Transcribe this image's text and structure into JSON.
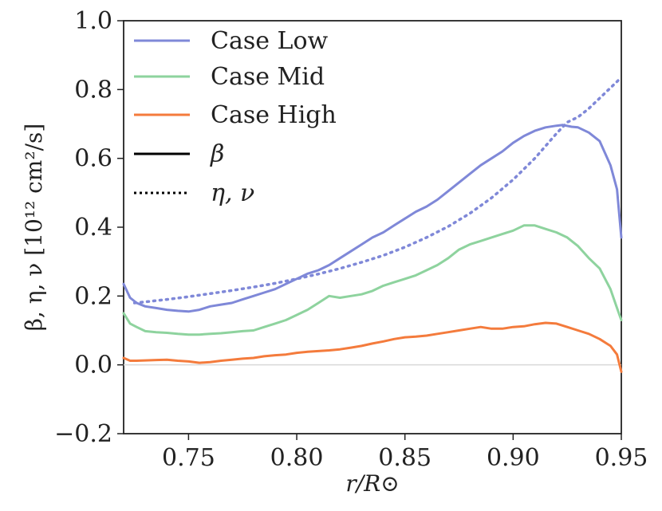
{
  "chart_data": {
    "type": "line",
    "title": "",
    "xlabel": "r/R⊙",
    "ylabel": "β, η, ν [10¹² cm²/s]",
    "xlim": [
      0.72,
      0.95
    ],
    "ylim": [
      -0.2,
      1.0
    ],
    "xticks": [
      "0.75",
      "0.80",
      "0.85",
      "0.90",
      "0.95"
    ],
    "xtick_values": [
      0.75,
      0.8,
      0.85,
      0.9,
      0.95
    ],
    "yticks": [
      "−0.2",
      "0.0",
      "0.2",
      "0.4",
      "0.6",
      "0.8",
      "1.0"
    ],
    "ytick_values": [
      -0.2,
      0.0,
      0.2,
      0.4,
      0.6,
      0.8,
      1.0
    ],
    "zero_line": true,
    "legend_position": "top-left",
    "legend": [
      {
        "label": "Case Low",
        "color": "#7f88d8",
        "style": "solid"
      },
      {
        "label": "Case Mid",
        "color": "#8ed39e",
        "style": "solid"
      },
      {
        "label": "Case High",
        "color": "#f47b3c",
        "style": "solid"
      },
      {
        "label": "β",
        "color": "#000000",
        "style": "solid"
      },
      {
        "label": "η, ν",
        "color": "#000000",
        "style": "dotted"
      }
    ],
    "series": [
      {
        "name": "Case Low β",
        "color": "#7f88d8",
        "style": "solid",
        "x": [
          0.72,
          0.723,
          0.726,
          0.73,
          0.735,
          0.74,
          0.745,
          0.75,
          0.755,
          0.76,
          0.765,
          0.77,
          0.775,
          0.78,
          0.785,
          0.79,
          0.795,
          0.8,
          0.805,
          0.81,
          0.815,
          0.82,
          0.825,
          0.83,
          0.835,
          0.84,
          0.845,
          0.85,
          0.855,
          0.86,
          0.865,
          0.87,
          0.875,
          0.88,
          0.885,
          0.89,
          0.895,
          0.9,
          0.905,
          0.91,
          0.915,
          0.92,
          0.923,
          0.927,
          0.93,
          0.935,
          0.94,
          0.945,
          0.948,
          0.95
        ],
        "y": [
          0.235,
          0.195,
          0.18,
          0.17,
          0.165,
          0.16,
          0.157,
          0.155,
          0.16,
          0.17,
          0.175,
          0.18,
          0.19,
          0.2,
          0.21,
          0.22,
          0.235,
          0.25,
          0.265,
          0.275,
          0.29,
          0.31,
          0.33,
          0.35,
          0.37,
          0.385,
          0.405,
          0.425,
          0.445,
          0.46,
          0.48,
          0.505,
          0.53,
          0.555,
          0.58,
          0.6,
          0.62,
          0.645,
          0.665,
          0.68,
          0.69,
          0.695,
          0.697,
          0.692,
          0.69,
          0.675,
          0.65,
          0.58,
          0.51,
          0.37
        ]
      },
      {
        "name": "Case Mid β",
        "color": "#8ed39e",
        "style": "solid",
        "x": [
          0.72,
          0.723,
          0.726,
          0.73,
          0.735,
          0.74,
          0.745,
          0.75,
          0.755,
          0.76,
          0.765,
          0.77,
          0.775,
          0.78,
          0.785,
          0.79,
          0.795,
          0.8,
          0.805,
          0.81,
          0.815,
          0.82,
          0.825,
          0.83,
          0.835,
          0.84,
          0.845,
          0.85,
          0.855,
          0.86,
          0.865,
          0.87,
          0.875,
          0.88,
          0.885,
          0.89,
          0.895,
          0.9,
          0.905,
          0.91,
          0.915,
          0.92,
          0.925,
          0.93,
          0.935,
          0.94,
          0.945,
          0.948,
          0.95
        ],
        "y": [
          0.15,
          0.12,
          0.11,
          0.098,
          0.095,
          0.093,
          0.09,
          0.088,
          0.088,
          0.09,
          0.092,
          0.095,
          0.098,
          0.1,
          0.11,
          0.12,
          0.13,
          0.145,
          0.16,
          0.18,
          0.2,
          0.195,
          0.2,
          0.205,
          0.215,
          0.23,
          0.24,
          0.25,
          0.26,
          0.275,
          0.29,
          0.31,
          0.335,
          0.35,
          0.36,
          0.37,
          0.38,
          0.39,
          0.405,
          0.405,
          0.395,
          0.385,
          0.37,
          0.345,
          0.31,
          0.28,
          0.22,
          0.165,
          0.13
        ]
      },
      {
        "name": "Case High β",
        "color": "#f47b3c",
        "style": "solid",
        "x": [
          0.72,
          0.723,
          0.726,
          0.73,
          0.735,
          0.74,
          0.745,
          0.75,
          0.755,
          0.76,
          0.765,
          0.77,
          0.775,
          0.78,
          0.785,
          0.79,
          0.795,
          0.8,
          0.805,
          0.81,
          0.815,
          0.82,
          0.825,
          0.83,
          0.835,
          0.84,
          0.845,
          0.85,
          0.855,
          0.86,
          0.865,
          0.87,
          0.875,
          0.88,
          0.885,
          0.89,
          0.895,
          0.9,
          0.905,
          0.91,
          0.915,
          0.92,
          0.925,
          0.93,
          0.935,
          0.94,
          0.945,
          0.948,
          0.95
        ],
        "y": [
          0.02,
          0.012,
          0.012,
          0.013,
          0.014,
          0.015,
          0.012,
          0.01,
          0.006,
          0.008,
          0.012,
          0.015,
          0.018,
          0.02,
          0.025,
          0.028,
          0.03,
          0.035,
          0.038,
          0.04,
          0.042,
          0.045,
          0.05,
          0.055,
          0.062,
          0.068,
          0.075,
          0.08,
          0.082,
          0.085,
          0.09,
          0.095,
          0.1,
          0.105,
          0.11,
          0.105,
          0.105,
          0.11,
          0.112,
          0.118,
          0.122,
          0.12,
          0.11,
          0.1,
          0.09,
          0.075,
          0.055,
          0.03,
          -0.02
        ]
      },
      {
        "name": "Case Low η, ν",
        "color": "#7f88d8",
        "style": "dotted",
        "x": [
          0.725,
          0.73,
          0.74,
          0.75,
          0.76,
          0.77,
          0.78,
          0.79,
          0.8,
          0.81,
          0.82,
          0.83,
          0.84,
          0.85,
          0.86,
          0.87,
          0.88,
          0.89,
          0.9,
          0.91,
          0.92,
          0.925,
          0.93,
          0.935,
          0.94,
          0.945,
          0.95
        ],
        "y": [
          0.18,
          0.183,
          0.19,
          0.198,
          0.207,
          0.216,
          0.226,
          0.237,
          0.25,
          0.264,
          0.28,
          0.298,
          0.318,
          0.342,
          0.37,
          0.402,
          0.44,
          0.485,
          0.538,
          0.6,
          0.672,
          0.705,
          0.72,
          0.745,
          0.775,
          0.805,
          0.835
        ]
      }
    ]
  }
}
